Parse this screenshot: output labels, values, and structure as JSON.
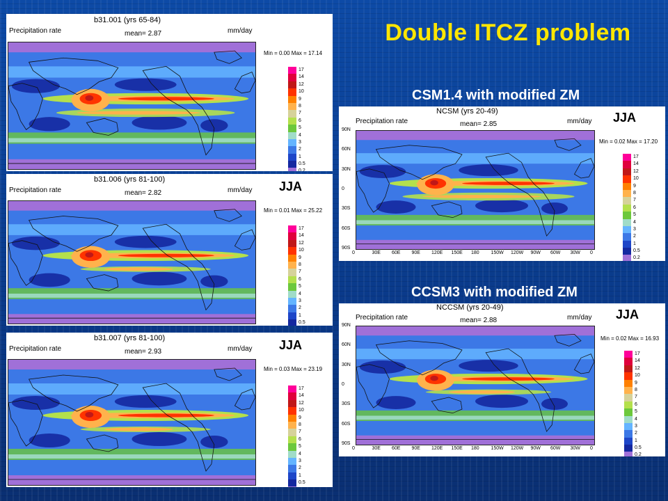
{
  "slide": {
    "title": "Double ITCZ problem",
    "sub1": "CSM1.4 with modified ZM",
    "sub2": "CCSM3 with modified ZM"
  },
  "legend_levels": [
    "17",
    "14",
    "12",
    "10",
    "9",
    "8",
    "7",
    "6",
    "5",
    "4",
    "3",
    "2",
    "1",
    "0.5",
    "0.2"
  ],
  "legend_colors": [
    "#ff0099",
    "#e0003c",
    "#c01818",
    "#ff3300",
    "#ff8000",
    "#ffb24c",
    "#d6d29a",
    "#b4e04c",
    "#6cc83c",
    "#a0dcc8",
    "#64b4ff",
    "#3c78e6",
    "#1e46c8",
    "#1428a0",
    "#a070d8"
  ],
  "panels": [
    {
      "title": "b31.001 (yrs 65-84)",
      "label": "Precipitation rate",
      "mean_label": "mean=",
      "mean": "2.87",
      "units": "mm/day",
      "minmax": "Min = 0.00 Max = 17.14",
      "season": ""
    },
    {
      "title": "b31.006 (yrs 81-100)",
      "label": "Precipitation rate",
      "mean_label": "mean=",
      "mean": "2.82",
      "units": "mm/day",
      "minmax": "Min = 0.01 Max = 25.22",
      "season": "JJA"
    },
    {
      "title": "b31.007 (yrs 81-100)",
      "label": "Precipitation rate",
      "mean_label": "mean=",
      "mean": "2.93",
      "units": "mm/day",
      "minmax": "Min = 0.03 Max = 23.19",
      "season": "JJA"
    },
    {
      "title": "NCSM (yrs 20-49)",
      "label": "Precipitation rate",
      "mean_label": "mean=",
      "mean": "2.85",
      "units": "mm/day",
      "minmax": "Min = 0.02 Max = 17.20",
      "season": "JJA"
    },
    {
      "title": "NCCSM (yrs 20-49)",
      "label": "Precipitation rate",
      "mean_label": "mean=",
      "mean": "2.88",
      "units": "mm/day",
      "minmax": "Min = 0.02 Max = 16.93",
      "season": "JJA"
    }
  ],
  "lat_labels": [
    "90N",
    "60N",
    "30N",
    "0",
    "30S",
    "60S",
    "90S"
  ],
  "lon_labels": [
    "0",
    "30E",
    "60E",
    "90E",
    "120E",
    "150E",
    "180",
    "150W",
    "120W",
    "90W",
    "60W",
    "30W",
    "0"
  ]
}
